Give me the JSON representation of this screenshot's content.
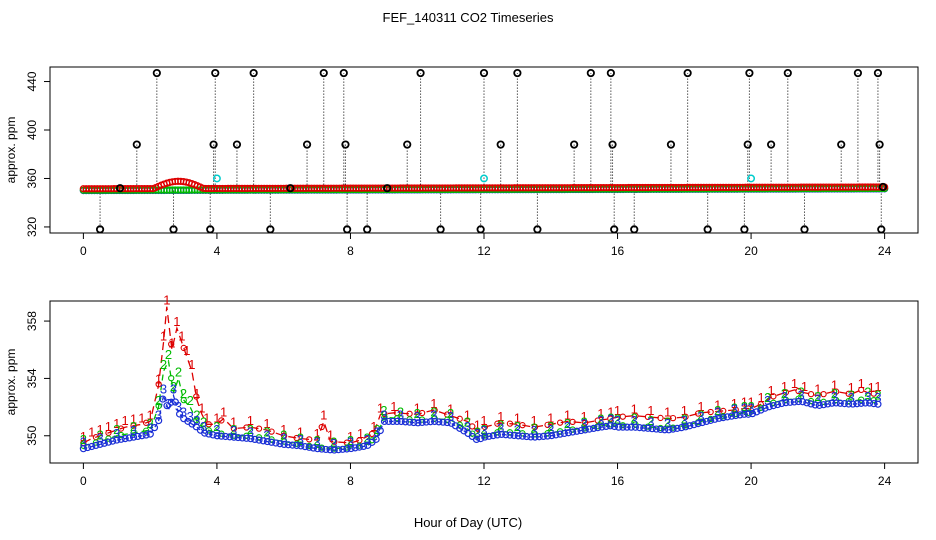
{
  "title": "FEF_140311  CO2 Timeseries",
  "xlabel": "Hour of Day (UTC)",
  "colors": {
    "series1": "#dd0000",
    "series2": "#00bb00",
    "series3": "#1a2fd6",
    "flag": "#00cccc",
    "outlier": "#000000"
  },
  "chart_data": [
    {
      "type": "scatter",
      "title": "FEF_140311  CO2 Timeseries",
      "xlabel": "",
      "ylabel": "approx. ppm",
      "xlim": [
        -1,
        25
      ],
      "ylim": [
        315,
        452
      ],
      "xticks": [
        0,
        4,
        8,
        12,
        16,
        20,
        24
      ],
      "yticks": [
        320,
        360,
        400,
        440
      ],
      "baseline_value": 350,
      "series": [
        {
          "name": "1",
          "color": "#dd0000"
        },
        {
          "name": "2",
          "color": "#00bb00"
        },
        {
          "name": "3",
          "color": "#1a2fd6"
        }
      ],
      "outliers": [
        {
          "x": 0.5,
          "y": 318
        },
        {
          "x": 1.1,
          "y": 352
        },
        {
          "x": 1.6,
          "y": 388
        },
        {
          "x": 2.2,
          "y": 447
        },
        {
          "x": 2.7,
          "y": 318
        },
        {
          "x": 3.8,
          "y": 318
        },
        {
          "x": 3.9,
          "y": 388
        },
        {
          "x": 3.95,
          "y": 447
        },
        {
          "x": 4.6,
          "y": 388
        },
        {
          "x": 5.1,
          "y": 447
        },
        {
          "x": 5.6,
          "y": 318
        },
        {
          "x": 6.2,
          "y": 352
        },
        {
          "x": 6.7,
          "y": 388
        },
        {
          "x": 7.2,
          "y": 447
        },
        {
          "x": 7.8,
          "y": 447
        },
        {
          "x": 7.85,
          "y": 388
        },
        {
          "x": 7.9,
          "y": 318
        },
        {
          "x": 8.5,
          "y": 318
        },
        {
          "x": 9.1,
          "y": 352
        },
        {
          "x": 9.7,
          "y": 388
        },
        {
          "x": 10.1,
          "y": 447
        },
        {
          "x": 10.7,
          "y": 318
        },
        {
          "x": 11.9,
          "y": 318
        },
        {
          "x": 12.0,
          "y": 447
        },
        {
          "x": 12.5,
          "y": 388
        },
        {
          "x": 13.0,
          "y": 447
        },
        {
          "x": 13.6,
          "y": 318
        },
        {
          "x": 14.7,
          "y": 388
        },
        {
          "x": 15.2,
          "y": 447
        },
        {
          "x": 15.8,
          "y": 447
        },
        {
          "x": 15.85,
          "y": 388
        },
        {
          "x": 15.9,
          "y": 318
        },
        {
          "x": 16.5,
          "y": 318
        },
        {
          "x": 17.6,
          "y": 388
        },
        {
          "x": 18.1,
          "y": 447
        },
        {
          "x": 18.7,
          "y": 318
        },
        {
          "x": 19.8,
          "y": 318
        },
        {
          "x": 19.9,
          "y": 388
        },
        {
          "x": 19.95,
          "y": 447
        },
        {
          "x": 20.6,
          "y": 388
        },
        {
          "x": 21.1,
          "y": 447
        },
        {
          "x": 21.6,
          "y": 318
        },
        {
          "x": 22.7,
          "y": 388
        },
        {
          "x": 23.2,
          "y": 447
        },
        {
          "x": 23.8,
          "y": 447
        },
        {
          "x": 23.85,
          "y": 388
        },
        {
          "x": 23.9,
          "y": 318
        },
        {
          "x": 23.95,
          "y": 353
        }
      ],
      "flags": [
        {
          "x": 4.0,
          "y": 360
        },
        {
          "x": 12.0,
          "y": 360
        },
        {
          "x": 20.0,
          "y": 360
        }
      ]
    },
    {
      "type": "line",
      "title": "",
      "xlabel": "Hour of Day (UTC)",
      "ylabel": "approx. ppm",
      "xlim": [
        -1,
        25
      ],
      "ylim": [
        348.1,
        359.4
      ],
      "xticks": [
        0,
        4,
        8,
        12,
        16,
        20,
        24
      ],
      "yticks": [
        350,
        354,
        358
      ],
      "series": [
        {
          "name": "1",
          "label": "1",
          "color": "#dd0000",
          "points": [
            [
              0,
              349.5
            ],
            [
              0.25,
              349.8
            ],
            [
              0.5,
              350.0
            ],
            [
              0.75,
              350.2
            ],
            [
              1.0,
              350.4
            ],
            [
              1.25,
              350.6
            ],
            [
              1.5,
              350.7
            ],
            [
              1.75,
              350.8
            ],
            [
              2.0,
              351.0
            ],
            [
              2.25,
              353.5
            ],
            [
              2.4,
              356.5
            ],
            [
              2.5,
              359.0
            ],
            [
              2.65,
              356.0
            ],
            [
              2.8,
              357.5
            ],
            [
              2.95,
              356.5
            ],
            [
              3.1,
              355.5
            ],
            [
              3.25,
              354.5
            ],
            [
              3.4,
              352.5
            ],
            [
              3.55,
              351.5
            ],
            [
              3.7,
              350.8
            ],
            [
              4.0,
              350.8
            ],
            [
              4.2,
              351.2
            ],
            [
              4.5,
              350.5
            ],
            [
              5.0,
              350.6
            ],
            [
              5.5,
              350.4
            ],
            [
              6.0,
              350.0
            ],
            [
              6.5,
              349.8
            ],
            [
              7.0,
              349.7
            ],
            [
              7.2,
              351.0
            ],
            [
              7.4,
              349.6
            ],
            [
              8.0,
              349.5
            ],
            [
              8.3,
              349.7
            ],
            [
              8.7,
              350.2
            ],
            [
              8.9,
              351.5
            ],
            [
              9.3,
              351.6
            ],
            [
              10.0,
              351.5
            ],
            [
              10.5,
              351.8
            ],
            [
              11.0,
              351.4
            ],
            [
              11.5,
              351.0
            ],
            [
              11.8,
              350.3
            ],
            [
              12.0,
              350.6
            ],
            [
              12.5,
              350.9
            ],
            [
              13.0,
              350.8
            ],
            [
              13.5,
              350.6
            ],
            [
              14.0,
              350.8
            ],
            [
              14.5,
              351.0
            ],
            [
              15.0,
              350.9
            ],
            [
              15.5,
              351.1
            ],
            [
              15.8,
              351.2
            ],
            [
              16.0,
              351.3
            ],
            [
              16.5,
              351.4
            ],
            [
              17.0,
              351.3
            ],
            [
              17.5,
              351.2
            ],
            [
              18.0,
              351.3
            ],
            [
              18.5,
              351.6
            ],
            [
              19.0,
              351.7
            ],
            [
              19.5,
              351.8
            ],
            [
              19.8,
              351.9
            ],
            [
              20.0,
              351.9
            ],
            [
              20.3,
              352.2
            ],
            [
              20.6,
              352.7
            ],
            [
              21.0,
              353.0
            ],
            [
              21.3,
              353.2
            ],
            [
              21.6,
              353.0
            ],
            [
              22.0,
              352.8
            ],
            [
              22.5,
              353.1
            ],
            [
              23.0,
              352.9
            ],
            [
              23.3,
              353.2
            ],
            [
              23.6,
              352.9
            ],
            [
              23.8,
              353.0
            ]
          ]
        },
        {
          "name": "2",
          "label": "2",
          "color": "#00bb00",
          "points": [
            [
              0,
              349.3
            ],
            [
              0.5,
              349.6
            ],
            [
              1.0,
              350.0
            ],
            [
              1.5,
              350.2
            ],
            [
              2.0,
              350.4
            ],
            [
              2.25,
              352.0
            ],
            [
              2.4,
              354.5
            ],
            [
              2.55,
              355.2
            ],
            [
              2.7,
              353.0
            ],
            [
              2.85,
              354.0
            ],
            [
              3.0,
              352.5
            ],
            [
              3.2,
              352.0
            ],
            [
              3.4,
              351.0
            ],
            [
              3.6,
              350.5
            ],
            [
              4.0,
              350.2
            ],
            [
              4.5,
              350.0
            ],
            [
              5.0,
              350.0
            ],
            [
              5.5,
              349.8
            ],
            [
              6.0,
              349.6
            ],
            [
              6.5,
              349.4
            ],
            [
              7.0,
              349.2
            ],
            [
              7.5,
              349.1
            ],
            [
              8.0,
              349.2
            ],
            [
              8.5,
              349.4
            ],
            [
              8.8,
              350.0
            ],
            [
              9.0,
              351.3
            ],
            [
              9.5,
              351.2
            ],
            [
              10.0,
              351.1
            ],
            [
              10.5,
              351.2
            ],
            [
              11.0,
              351.1
            ],
            [
              11.5,
              350.5
            ],
            [
              11.8,
              349.8
            ],
            [
              12.0,
              350.0
            ],
            [
              12.5,
              350.3
            ],
            [
              13.0,
              350.2
            ],
            [
              13.5,
              350.1
            ],
            [
              14.0,
              350.2
            ],
            [
              14.5,
              350.4
            ],
            [
              15.0,
              350.5
            ],
            [
              15.5,
              350.7
            ],
            [
              15.8,
              350.8
            ],
            [
              16.0,
              350.7
            ],
            [
              16.5,
              350.8
            ],
            [
              17.0,
              350.6
            ],
            [
              17.5,
              350.5
            ],
            [
              18.0,
              350.7
            ],
            [
              18.5,
              351.0
            ],
            [
              19.0,
              351.3
            ],
            [
              19.5,
              351.5
            ],
            [
              19.8,
              351.6
            ],
            [
              20.0,
              351.6
            ],
            [
              20.5,
              352.2
            ],
            [
              21.0,
              352.5
            ],
            [
              21.5,
              352.6
            ],
            [
              22.0,
              352.3
            ],
            [
              22.5,
              352.5
            ],
            [
              23.0,
              352.4
            ],
            [
              23.5,
              352.6
            ],
            [
              23.8,
              352.4
            ]
          ]
        },
        {
          "name": "3",
          "label": "3",
          "color": "#1a2fd6",
          "points": [
            [
              0,
              349.1
            ],
            [
              0.5,
              349.4
            ],
            [
              1.0,
              349.7
            ],
            [
              1.5,
              349.9
            ],
            [
              2.0,
              350.1
            ],
            [
              2.25,
              351.0
            ],
            [
              2.4,
              352.8
            ],
            [
              2.55,
              351.8
            ],
            [
              2.7,
              352.8
            ],
            [
              2.85,
              351.6
            ],
            [
              3.0,
              351.2
            ],
            [
              3.2,
              350.9
            ],
            [
              3.4,
              350.6
            ],
            [
              3.6,
              350.2
            ],
            [
              4.0,
              350.0
            ],
            [
              4.5,
              349.9
            ],
            [
              5.0,
              349.8
            ],
            [
              5.5,
              349.6
            ],
            [
              6.0,
              349.4
            ],
            [
              6.5,
              349.3
            ],
            [
              7.0,
              349.1
            ],
            [
              7.5,
              349.0
            ],
            [
              8.0,
              349.1
            ],
            [
              8.5,
              349.3
            ],
            [
              8.8,
              349.8
            ],
            [
              9.0,
              351.0
            ],
            [
              9.5,
              351.0
            ],
            [
              10.0,
              350.9
            ],
            [
              10.5,
              351.0
            ],
            [
              11.0,
              350.9
            ],
            [
              11.5,
              350.2
            ],
            [
              11.8,
              349.7
            ],
            [
              12.0,
              349.9
            ],
            [
              12.5,
              350.1
            ],
            [
              13.0,
              350.0
            ],
            [
              13.5,
              349.9
            ],
            [
              14.0,
              350.0
            ],
            [
              14.5,
              350.2
            ],
            [
              15.0,
              350.4
            ],
            [
              15.5,
              350.6
            ],
            [
              15.8,
              350.7
            ],
            [
              16.0,
              350.6
            ],
            [
              16.5,
              350.6
            ],
            [
              17.0,
              350.5
            ],
            [
              17.5,
              350.4
            ],
            [
              18.0,
              350.6
            ],
            [
              18.5,
              350.9
            ],
            [
              19.0,
              351.2
            ],
            [
              19.5,
              351.4
            ],
            [
              19.8,
              351.5
            ],
            [
              20.0,
              351.5
            ],
            [
              20.5,
              352.0
            ],
            [
              21.0,
              352.3
            ],
            [
              21.5,
              352.4
            ],
            [
              22.0,
              352.1
            ],
            [
              22.5,
              352.3
            ],
            [
              23.0,
              352.2
            ],
            [
              23.5,
              352.3
            ],
            [
              23.8,
              352.2
            ]
          ]
        }
      ]
    }
  ]
}
